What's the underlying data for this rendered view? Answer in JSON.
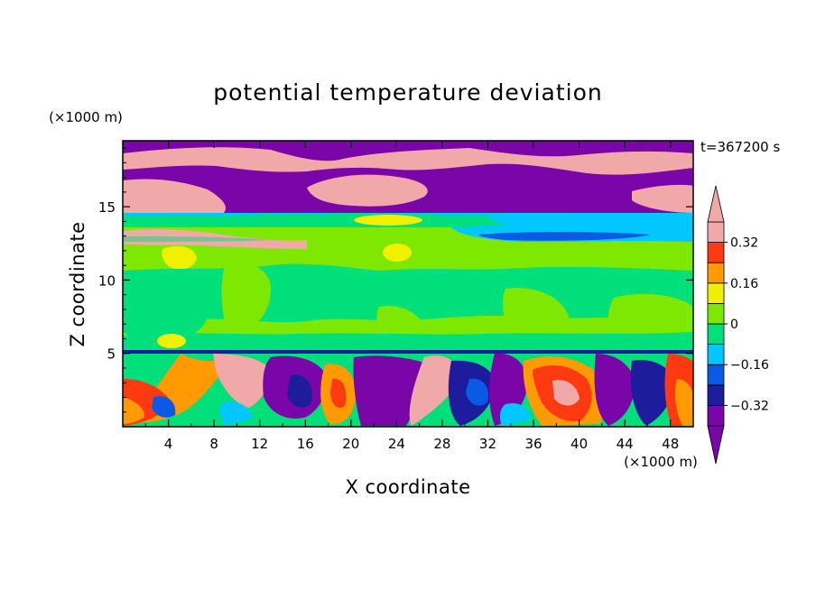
{
  "chart_data": {
    "type": "heatmap",
    "title": "potential temperature deviation",
    "xlabel": "X coordinate",
    "ylabel": "Z coordinate",
    "x_unit": "(×1000 m)",
    "y_unit": "(×1000 m)",
    "time_label": "t=367200 s",
    "xlim": [
      0,
      50
    ],
    "ylim": [
      0,
      19.5
    ],
    "x_ticks": [
      4,
      8,
      12,
      16,
      20,
      24,
      28,
      32,
      36,
      40,
      44,
      48
    ],
    "y_ticks": [
      5,
      10,
      15
    ],
    "colorbar": {
      "levels": [
        -0.4,
        -0.32,
        -0.24,
        -0.16,
        -0.08,
        0,
        0.08,
        0.16,
        0.24,
        0.32,
        0.4
      ],
      "labels": [
        "0.32",
        "0.16",
        "0",
        "−0.16",
        "−0.32"
      ],
      "label_values": [
        0.32,
        0.16,
        0,
        -0.16,
        -0.32
      ],
      "colors": [
        "#7a05a8",
        "#1c1c9c",
        "#0a5ae6",
        "#00c8ff",
        "#00e07a",
        "#7ee800",
        "#f0f000",
        "#ff9a00",
        "#ff3a10",
        "#f0a8a8"
      ],
      "under_color": "#7a05a8",
      "over_color": "#f0a8a8",
      "extend": "both"
    },
    "grid": false
  },
  "field_colors": {
    "purple": "#7a05a8",
    "navy": "#1c1c9c",
    "blue": "#0a5ae6",
    "cyan": "#00c8ff",
    "green": "#00e07a",
    "lime": "#7ee800",
    "yellow": "#f0f000",
    "orange": "#ff9a00",
    "red": "#ff3a10",
    "pink": "#f0a8a8"
  }
}
